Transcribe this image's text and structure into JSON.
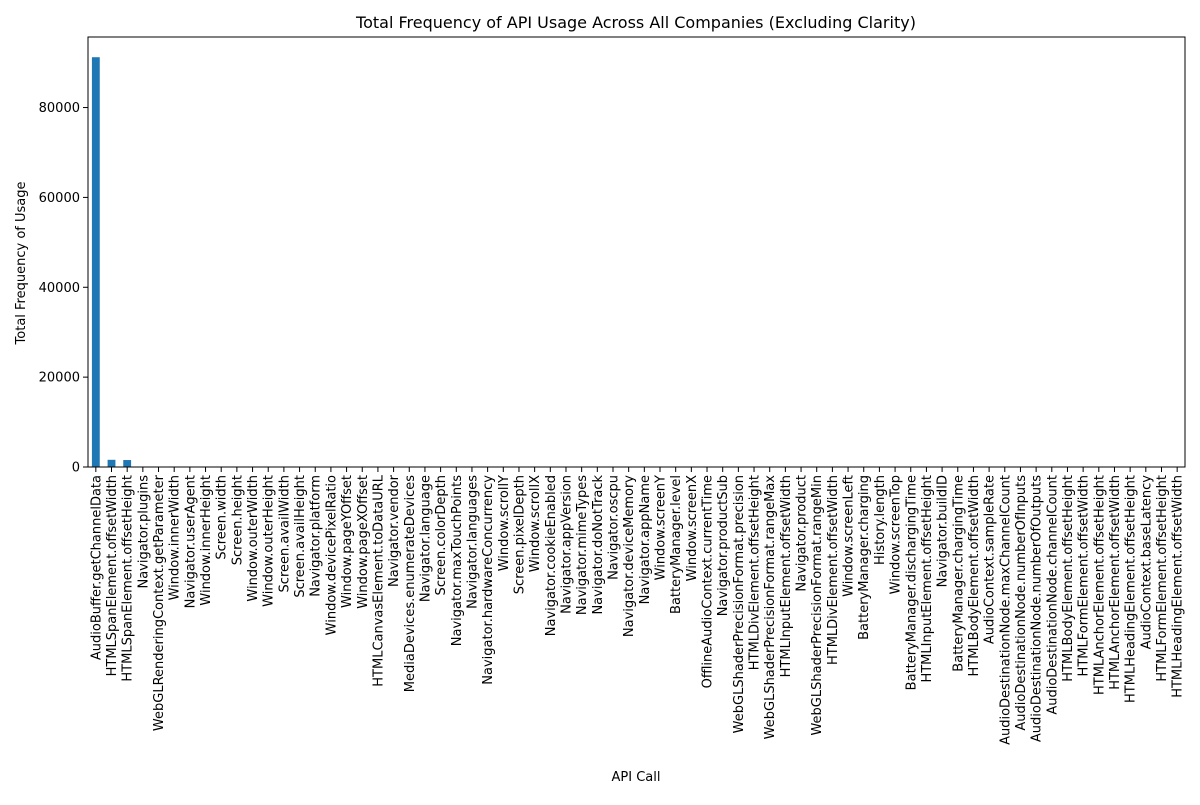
{
  "chart_data": {
    "type": "bar",
    "title": "Total Frequency of API Usage Across All Companies (Excluding Clarity)",
    "xlabel": "API Call",
    "ylabel": "Total Frequency of Usage",
    "ylim": [
      0,
      95700
    ],
    "yticks": [
      0,
      20000,
      40000,
      60000,
      80000
    ],
    "ytick_labels": [
      "0",
      "20000",
      "40000",
      "60000",
      "80000"
    ],
    "grid": false,
    "legend": "none",
    "bar_color": "#1f77b4",
    "categories": [
      "AudioBuffer.getChannelData",
      "HTMLSpanElement.offsetWidth",
      "HTMLSpanElement.offsetHeight",
      "Navigator.plugins",
      "WebGLRenderingContext.getParameter",
      "Window.innerWidth",
      "Navigator.userAgent",
      "Window.innerHeight",
      "Screen.width",
      "Screen.height",
      "Window.outerWidth",
      "Window.outerHeight",
      "Screen.availWidth",
      "Screen.availHeight",
      "Navigator.platform",
      "Window.devicePixelRatio",
      "Window.pageYOffset",
      "Window.pageXOffset",
      "HTMLCanvasElement.toDataURL",
      "Navigator.vendor",
      "MediaDevices.enumerateDevices",
      "Navigator.language",
      "Screen.colorDepth",
      "Navigator.maxTouchPoints",
      "Navigator.languages",
      "Navigator.hardwareConcurrency",
      "Window.scrollY",
      "Screen.pixelDepth",
      "Window.scrollX",
      "Navigator.cookieEnabled",
      "Navigator.appVersion",
      "Navigator.mimeTypes",
      "Navigator.doNotTrack",
      "Navigator.oscpu",
      "Navigator.deviceMemory",
      "Navigator.appName",
      "Window.screenY",
      "BatteryManager.level",
      "Window.screenX",
      "OfflineAudioContext.currentTime",
      "Navigator.productSub",
      "WebGLShaderPrecisionFormat.precision",
      "HTMLDivElement.offsetHeight",
      "WebGLShaderPrecisionFormat.rangeMax",
      "HTMLInputElement.offsetWidth",
      "Navigator.product",
      "WebGLShaderPrecisionFormat.rangeMin",
      "HTMLDivElement.offsetWidth",
      "Window.screenLeft",
      "BatteryManager.charging",
      "History.length",
      "Window.screenTop",
      "BatteryManager.dischargingTime",
      "HTMLInputElement.offsetHeight",
      "Navigator.buildID",
      "BatteryManager.chargingTime",
      "HTMLBodyElement.offsetWidth",
      "AudioContext.sampleRate",
      "AudioDestinationNode.maxChannelCount",
      "AudioDestinationNode.numberOfInputs",
      "AudioDestinationNode.numberOfOutputs",
      "AudioDestinationNode.channelCount",
      "HTMLBodyElement.offsetHeight",
      "HTMLFormElement.offsetWidth",
      "HTMLAnchorElement.offsetHeight",
      "HTMLAnchorElement.offsetWidth",
      "HTMLHeadingElement.offsetHeight",
      "AudioContext.baseLatency",
      "HTMLFormElement.offsetHeight",
      "HTMLHeadingElement.offsetWidth"
    ],
    "values": [
      91200,
      1600,
      1550,
      110,
      105,
      100,
      95,
      95,
      90,
      90,
      88,
      88,
      85,
      85,
      80,
      80,
      75,
      75,
      70,
      65,
      60,
      58,
      55,
      52,
      50,
      48,
      45,
      44,
      43,
      42,
      40,
      38,
      36,
      34,
      32,
      30,
      28,
      26,
      25,
      24,
      22,
      20,
      19,
      18,
      17,
      16,
      15,
      14,
      13,
      12,
      11,
      10,
      9,
      8,
      8,
      7,
      7,
      6,
      6,
      5,
      5,
      5,
      4,
      4,
      3,
      3,
      3,
      2,
      2,
      2
    ]
  }
}
